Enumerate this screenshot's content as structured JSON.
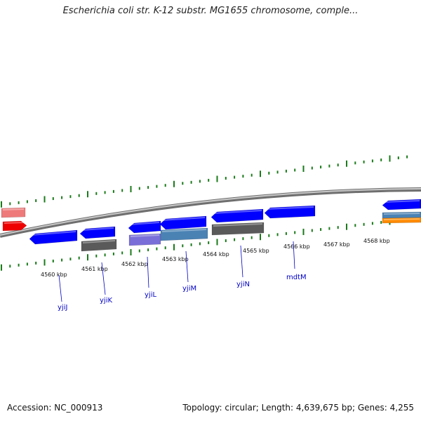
{
  "title": "Escherichia coli str. K-12 substr. MG1655 chromosome, comple...",
  "footer": {
    "accession": "Accession: NC_000913",
    "summary": "Topology: circular; Length: 4,639,675 bp; Genes: 4,255"
  },
  "colors": {
    "cds": "#0000ff",
    "gray_feature": "#5a5a5a",
    "purple_feature": "#7a6fd8",
    "steel_feature": "#4a82b4",
    "red_feature": "#ee0000",
    "pink_feature": "#ee7a7a",
    "orange_feature": "#ff8a00",
    "gc_ticks": "#1a7a1a",
    "backbone": "#888888",
    "gene_label": "#0000c8"
  },
  "kbp_ticks": [
    "4560 kbp",
    "4561 kbp",
    "4562 kbp",
    "4563 kbp",
    "4564 kbp",
    "4565 kbp",
    "4566 kbp",
    "4567 kbp",
    "4568 kbp"
  ],
  "gene_labels": [
    "yjiJ",
    "yjiK",
    "yjiL",
    "yjiM",
    "yjiN",
    "mdtM"
  ]
}
